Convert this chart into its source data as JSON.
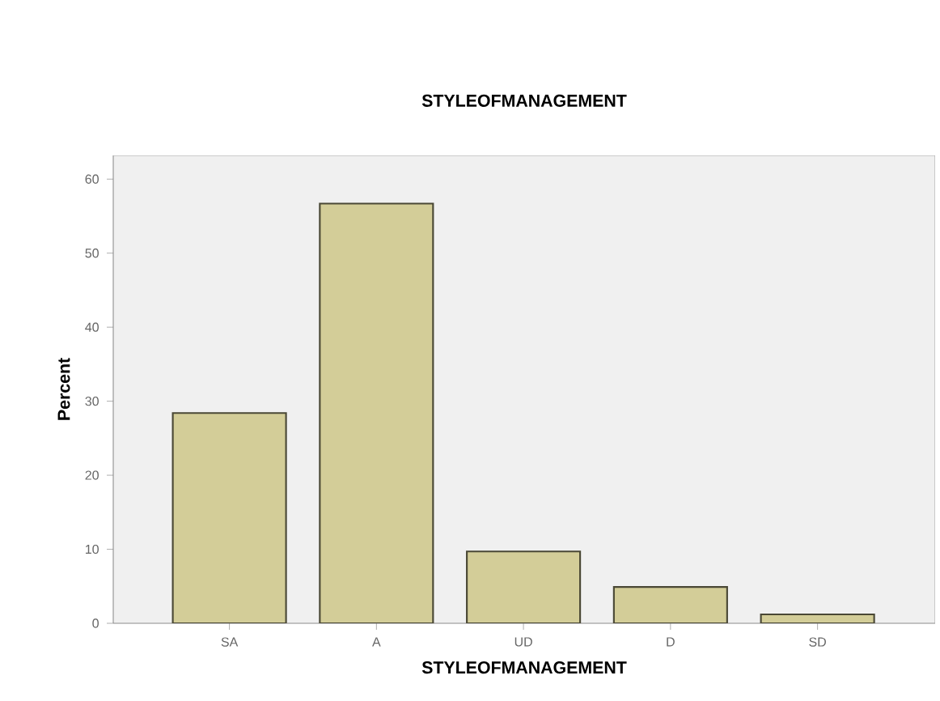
{
  "chart_data": {
    "type": "bar",
    "title": "STYLEOFMANAGEMENT",
    "xlabel": "STYLEOFMANAGEMENT",
    "ylabel": "Percent",
    "categories": [
      "SA",
      "A",
      "UD",
      "D",
      "SD"
    ],
    "values": [
      28.4,
      56.7,
      9.7,
      4.9,
      1.2
    ],
    "color": "#d3cd98",
    "ylim": [
      0,
      63.2
    ],
    "yticks": [
      0,
      10,
      20,
      30,
      40,
      50,
      60
    ],
    "grid": false
  }
}
